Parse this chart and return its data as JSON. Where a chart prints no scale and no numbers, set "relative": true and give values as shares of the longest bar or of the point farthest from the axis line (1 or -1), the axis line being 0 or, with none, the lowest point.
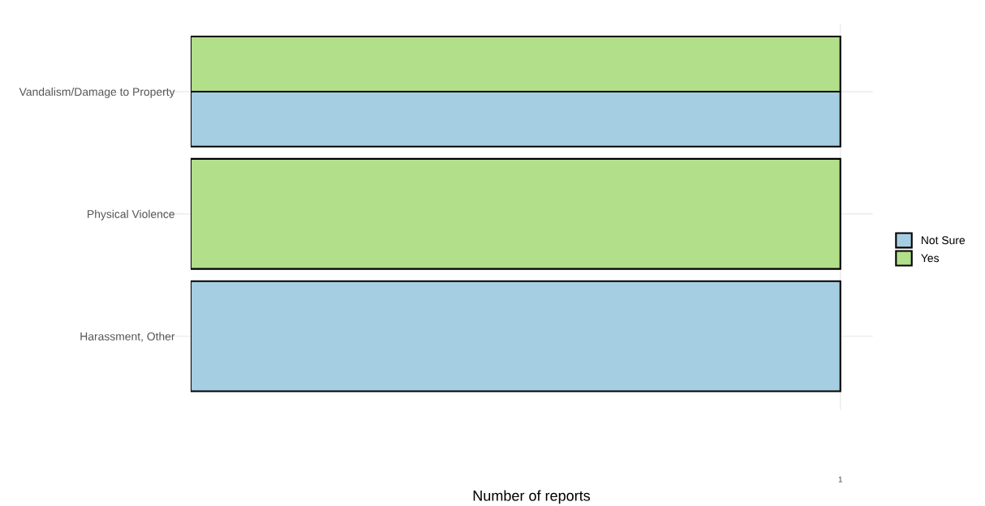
{
  "chart_data": {
    "type": "bar",
    "orientation": "horizontal",
    "relative": true,
    "categories": [
      "Vandalism/Damage to Property",
      "Physical Violence",
      "Harassment, Other"
    ],
    "series": [
      {
        "name": "Not Sure",
        "color": "#a6cee3",
        "values": [
          1,
          null,
          1
        ]
      },
      {
        "name": "Yes",
        "color": "#b2df8a",
        "values": [
          1,
          1,
          null
        ]
      }
    ],
    "annotations": [
      "1",
      "Number of reports"
    ],
    "grid": true,
    "legend": "right"
  }
}
